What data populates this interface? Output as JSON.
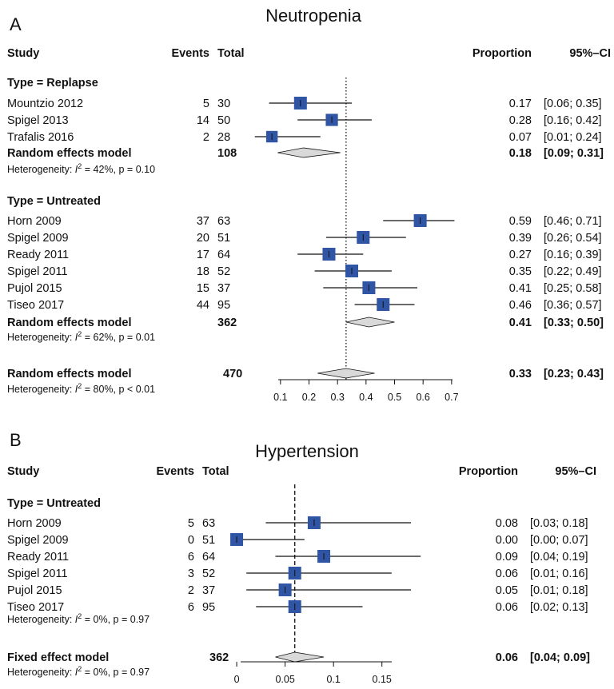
{
  "colors": {
    "box": "#2f55a4",
    "diamond": "#d9d9d9",
    "ink": "#111111"
  },
  "headers": {
    "study": "Study",
    "events": "Events",
    "total": "Total",
    "proportion": "Proportion",
    "ci": "95%–CI"
  },
  "chart_data": [
    {
      "type": "forest",
      "panel": "A",
      "title": "Neutropenia",
      "xlim": [
        0.05,
        0.72
      ],
      "ticks": [
        0.1,
        0.2,
        0.3,
        0.4,
        0.5,
        0.6,
        0.7
      ],
      "tick_labels": [
        "0.1",
        "0.2",
        "0.3",
        "0.4",
        "0.5",
        "0.6",
        "0.7"
      ],
      "reference_line": 0.33,
      "subgroups": [
        {
          "label": "Type = Replapse",
          "studies": [
            {
              "name": "Mountzio 2012",
              "events": "5",
              "total": "30",
              "est": 0.17,
              "lo": 0.06,
              "hi": 0.35,
              "weight": 1.0,
              "prop_text": "0.17",
              "ci_text": "[0.06; 0.35]"
            },
            {
              "name": "Spigel 2013",
              "events": "14",
              "total": "50",
              "est": 0.28,
              "lo": 0.16,
              "hi": 0.42,
              "weight": 0.95,
              "prop_text": "0.28",
              "ci_text": "[0.16; 0.42]"
            },
            {
              "name": "Trafalis 2016",
              "events": "2",
              "total": "28",
              "est": 0.07,
              "lo": 0.01,
              "hi": 0.24,
              "weight": 0.9,
              "prop_text": "0.07",
              "ci_text": "[0.01; 0.24]"
            }
          ],
          "summary": {
            "name": "Random effects model",
            "total": "108",
            "est": 0.18,
            "lo": 0.09,
            "hi": 0.31,
            "prop_text": "0.18",
            "ci_text": "[0.09; 0.31]"
          },
          "heterogeneity": {
            "prefix": "Heterogeneity: ",
            "i2_label": "I",
            "i2_sup": "2",
            "rest": " = 42%, p = 0.10"
          }
        },
        {
          "label": "Type = Untreated",
          "studies": [
            {
              "name": "Horn 2009",
              "events": "37",
              "total": "63",
              "est": 0.59,
              "lo": 0.46,
              "hi": 0.71,
              "weight": 1.0,
              "prop_text": "0.59",
              "ci_text": "[0.46; 0.71]"
            },
            {
              "name": "Spigel 2009",
              "events": "20",
              "total": "51",
              "est": 0.39,
              "lo": 0.26,
              "hi": 0.54,
              "weight": 1.0,
              "prop_text": "0.39",
              "ci_text": "[0.26; 0.54]"
            },
            {
              "name": "Ready 2011",
              "events": "17",
              "total": "64",
              "est": 0.27,
              "lo": 0.16,
              "hi": 0.39,
              "weight": 1.0,
              "prop_text": "0.27",
              "ci_text": "[0.16; 0.39]"
            },
            {
              "name": "Spigel 2011",
              "events": "18",
              "total": "52",
              "est": 0.35,
              "lo": 0.22,
              "hi": 0.49,
              "weight": 1.0,
              "prop_text": "0.35",
              "ci_text": "[0.22; 0.49]"
            },
            {
              "name": "Pujol 2015",
              "events": "15",
              "total": "37",
              "est": 0.41,
              "lo": 0.25,
              "hi": 0.58,
              "weight": 1.0,
              "prop_text": "0.41",
              "ci_text": "[0.25; 0.58]"
            },
            {
              "name": "Tiseo 2017",
              "events": "44",
              "total": "95",
              "est": 0.46,
              "lo": 0.36,
              "hi": 0.57,
              "weight": 1.0,
              "prop_text": "0.46",
              "ci_text": "[0.36; 0.57]"
            }
          ],
          "summary": {
            "name": "Random effects model",
            "total": "362",
            "est": 0.41,
            "lo": 0.33,
            "hi": 0.5,
            "prop_text": "0.41",
            "ci_text": "[0.33; 0.50]"
          },
          "heterogeneity": {
            "prefix": "Heterogeneity: ",
            "i2_label": "I",
            "i2_sup": "2",
            "rest": " = 62%, p = 0.01"
          }
        }
      ],
      "overall": {
        "summary": {
          "name": "Random effects model",
          "total": "470",
          "est": 0.33,
          "lo": 0.23,
          "hi": 0.43,
          "prop_text": "0.33",
          "ci_text": "[0.23; 0.43]"
        },
        "heterogeneity": {
          "prefix": "Heterogeneity: ",
          "i2_label": "I",
          "i2_sup": "2",
          "rest": " = 80%, p < 0.01"
        }
      }
    },
    {
      "type": "forest",
      "panel": "B",
      "title": "Hypertension",
      "xlim": [
        -0.005,
        0.175
      ],
      "ticks": [
        0,
        0.05,
        0.1,
        0.15
      ],
      "tick_labels": [
        "0",
        "0.05",
        "0.1",
        "0.15"
      ],
      "reference_line": 0.06,
      "subgroups": [
        {
          "label": "Type = Untreated",
          "studies": [
            {
              "name": "Horn 2009",
              "events": "5",
              "total": "63",
              "est": 0.08,
              "lo": 0.03,
              "hi": 0.18,
              "weight": 1.0,
              "prop_text": "0.08",
              "ci_text": "[0.03; 0.18]"
            },
            {
              "name": "Spigel 2009",
              "events": "0",
              "total": "51",
              "est": 0.0,
              "lo": 0.0,
              "hi": 0.07,
              "weight": 1.0,
              "prop_text": "0.00",
              "ci_text": "[0.00; 0.07]"
            },
            {
              "name": "Ready 2011",
              "events": "6",
              "total": "64",
              "est": 0.09,
              "lo": 0.04,
              "hi": 0.19,
              "weight": 1.0,
              "prop_text": "0.09",
              "ci_text": "[0.04; 0.19]"
            },
            {
              "name": "Spigel 2011",
              "events": "3",
              "total": "52",
              "est": 0.06,
              "lo": 0.01,
              "hi": 0.16,
              "weight": 1.0,
              "prop_text": "0.06",
              "ci_text": "[0.01; 0.16]"
            },
            {
              "name": "Pujol 2015",
              "events": "2",
              "total": "37",
              "est": 0.05,
              "lo": 0.01,
              "hi": 0.18,
              "weight": 1.0,
              "prop_text": "0.05",
              "ci_text": "[0.01; 0.18]"
            },
            {
              "name": "Tiseo 2017",
              "events": "6",
              "total": "95",
              "est": 0.06,
              "lo": 0.02,
              "hi": 0.13,
              "weight": 1.0,
              "prop_text": "0.06",
              "ci_text": "[0.02; 0.13]"
            }
          ],
          "heterogeneity": {
            "prefix": "Heterogeneity: ",
            "i2_label": "I",
            "i2_sup": "2",
            "rest": " = 0%, p = 0.97"
          }
        }
      ],
      "overall": {
        "summary": {
          "name": "Fixed effect model",
          "total": "362",
          "est": 0.06,
          "lo": 0.04,
          "hi": 0.09,
          "prop_text": "0.06",
          "ci_text": "[0.04; 0.09]"
        },
        "heterogeneity": {
          "prefix": "Heterogeneity: ",
          "i2_label": "I",
          "i2_sup": "2",
          "rest": " = 0%, p = 0.97"
        }
      }
    }
  ]
}
